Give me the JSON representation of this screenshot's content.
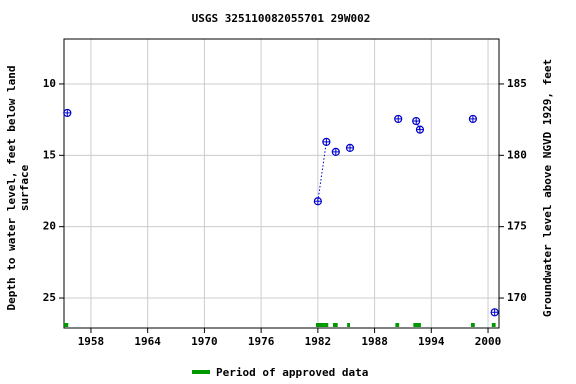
{
  "chart_data": {
    "type": "scatter",
    "title": "USGS 325110082055701 29W002",
    "y_label": [
      "Depth to water level, feet below land",
      "surface"
    ],
    "y2_label": "Groundwater level above NGVD 1929, feet",
    "x": [
      1955.5,
      1982.0,
      1982.9,
      1983.9,
      1985.4,
      1990.5,
      1992.4,
      1992.8,
      1998.4,
      2000.7
    ],
    "values": [
      12.03,
      18.22,
      14.06,
      14.76,
      14.48,
      12.45,
      12.6,
      13.2,
      12.45,
      26.0
    ],
    "color": "#0000cc",
    "xlim": [
      1955.15,
      2001.16
    ],
    "xticks": [
      1958,
      1964,
      1970,
      1976,
      1982,
      1988,
      1994,
      2000
    ],
    "ylim": [
      6.85,
      27.1
    ],
    "yticks": [
      10,
      15,
      20,
      25
    ],
    "y_inverted": true,
    "y2lim": [
      188.15,
      167.9
    ],
    "y2ticks": [
      170,
      175,
      180,
      185
    ],
    "grid": true,
    "approved_periods": {
      "name": "Period of approved data",
      "color": "#009900",
      "ranges": [
        [
          1955.15,
          1955.6
        ],
        [
          1981.8,
          1983.1
        ],
        [
          1983.6,
          1984.1
        ],
        [
          1985.1,
          1985.4
        ],
        [
          1990.2,
          1990.6
        ],
        [
          1992.1,
          1992.9
        ],
        [
          1998.2,
          1998.6
        ],
        [
          2000.4,
          2000.8
        ]
      ]
    }
  }
}
